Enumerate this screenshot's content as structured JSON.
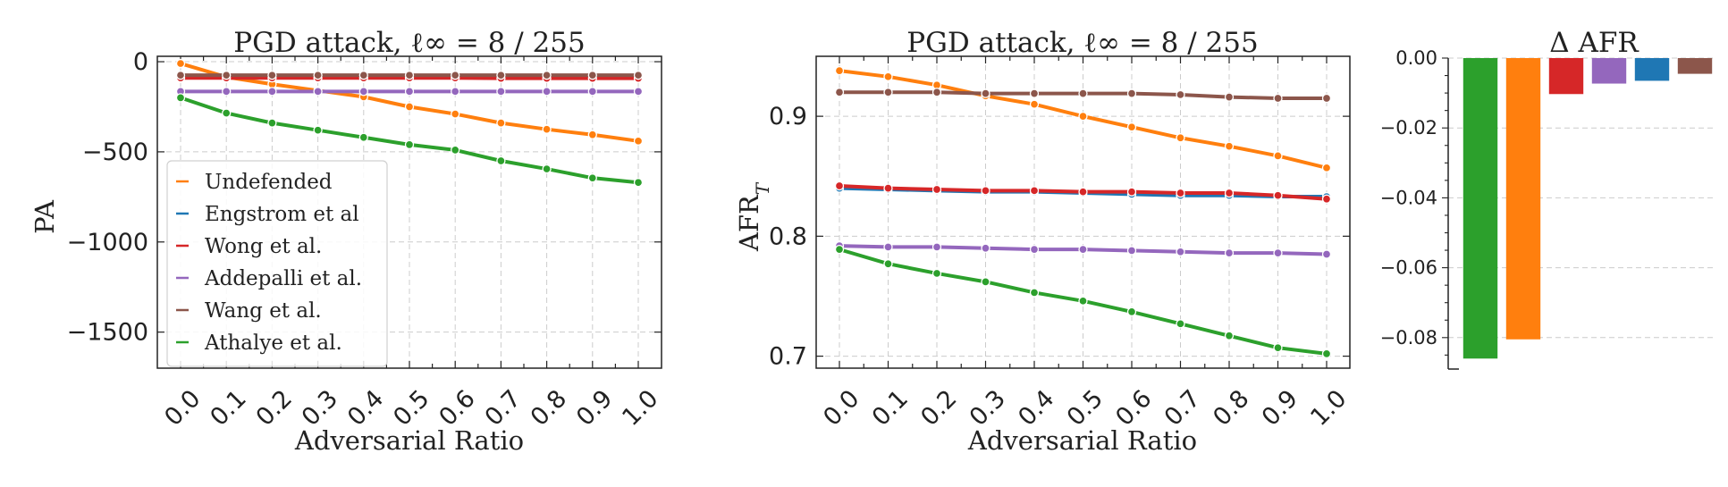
{
  "chart_data": [
    {
      "type": "line",
      "title": "PGD attack, ℓ∞ = 8 / 255",
      "xlabel": "Adversarial Ratio",
      "ylabel": "PA",
      "x": [
        0.0,
        0.1,
        0.2,
        0.3,
        0.4,
        0.5,
        0.6,
        0.7,
        0.8,
        0.9,
        1.0
      ],
      "x_tick_labels": [
        "0.0",
        "0.1",
        "0.2",
        "0.3",
        "0.4",
        "0.5",
        "0.6",
        "0.7",
        "0.8",
        "0.9",
        "1.0"
      ],
      "ylim": [
        -1700,
        30
      ],
      "y_ticks": [
        0,
        -500,
        -1000,
        -1500
      ],
      "y_tick_labels": [
        "0",
        "−500",
        "−1000",
        "−1500"
      ],
      "grid": true,
      "legend_position": "bottom-left",
      "series": [
        {
          "name": "Undefended",
          "color": "#ff7f0e",
          "values": [
            -10,
            -85,
            -125,
            -160,
            -195,
            -250,
            -290,
            -340,
            -375,
            -405,
            -440
          ]
        },
        {
          "name": "Engstrom et al",
          "color": "#1f77b4",
          "values": [
            -80,
            -80,
            -80,
            -80,
            -80,
            -80,
            -80,
            -80,
            -80,
            -80,
            -80
          ]
        },
        {
          "name": "Wong et al.",
          "color": "#d62728",
          "values": [
            -90,
            -90,
            -90,
            -90,
            -90,
            -90,
            -90,
            -92,
            -92,
            -92,
            -92
          ]
        },
        {
          "name": "Addepalli et al.",
          "color": "#9467bd",
          "values": [
            -165,
            -165,
            -165,
            -165,
            -165,
            -165,
            -165,
            -165,
            -165,
            -165,
            -165
          ]
        },
        {
          "name": "Wang et al.",
          "color": "#8c564b",
          "values": [
            -75,
            -75,
            -75,
            -75,
            -75,
            -75,
            -75,
            -75,
            -75,
            -75,
            -75
          ]
        },
        {
          "name": "Athalye et al.",
          "color": "#2ca02c",
          "values": [
            -200,
            -285,
            -340,
            -380,
            -420,
            -460,
            -490,
            -550,
            -595,
            -645,
            -670
          ]
        }
      ]
    },
    {
      "type": "line",
      "title": "PGD attack, ℓ∞ = 8 / 255",
      "xlabel": "Adversarial Ratio",
      "ylabel": "AFR",
      "ylabel_sub": "T",
      "x": [
        0.0,
        0.1,
        0.2,
        0.3,
        0.4,
        0.5,
        0.6,
        0.7,
        0.8,
        0.9,
        1.0
      ],
      "x_tick_labels": [
        "0.0",
        "0.1",
        "0.2",
        "0.3",
        "0.4",
        "0.5",
        "0.6",
        "0.7",
        "0.8",
        "0.9",
        "1.0"
      ],
      "ylim": [
        0.69,
        0.95
      ],
      "y_ticks": [
        0.7,
        0.8,
        0.9
      ],
      "y_tick_labels": [
        "0.7",
        "0.8",
        "0.9"
      ],
      "grid": true,
      "series": [
        {
          "name": "Undefended",
          "color": "#ff7f0e",
          "values": [
            0.938,
            0.933,
            0.926,
            0.917,
            0.91,
            0.9,
            0.891,
            0.882,
            0.875,
            0.867,
            0.857
          ]
        },
        {
          "name": "Engstrom et al",
          "color": "#1f77b4",
          "values": [
            0.84,
            0.839,
            0.838,
            0.837,
            0.837,
            0.836,
            0.835,
            0.834,
            0.834,
            0.833,
            0.833
          ]
        },
        {
          "name": "Wong et al.",
          "color": "#d62728",
          "values": [
            0.842,
            0.84,
            0.839,
            0.838,
            0.838,
            0.837,
            0.837,
            0.836,
            0.836,
            0.834,
            0.831
          ]
        },
        {
          "name": "Addepalli et al.",
          "color": "#9467bd",
          "values": [
            0.792,
            0.791,
            0.791,
            0.79,
            0.789,
            0.789,
            0.788,
            0.787,
            0.786,
            0.786,
            0.785
          ]
        },
        {
          "name": "Wang et al.",
          "color": "#8c564b",
          "values": [
            0.92,
            0.92,
            0.92,
            0.919,
            0.919,
            0.919,
            0.919,
            0.918,
            0.916,
            0.915,
            0.915
          ]
        },
        {
          "name": "Athalye et al.",
          "color": "#2ca02c",
          "values": [
            0.789,
            0.777,
            0.769,
            0.762,
            0.753,
            0.746,
            0.737,
            0.727,
            0.717,
            0.707,
            0.702
          ]
        }
      ]
    },
    {
      "type": "bar",
      "title": "Δ AFR",
      "ylim": [
        -0.089,
        0.0
      ],
      "y_ticks": [
        0.0,
        -0.02,
        -0.04,
        -0.06,
        -0.08
      ],
      "y_tick_labels": [
        "0.00",
        "−0.02",
        "−0.04",
        "−0.06",
        "−0.08"
      ],
      "grid": true,
      "bars": [
        {
          "color": "#2ca02c",
          "value": -0.086
        },
        {
          "color": "#ff7f0e",
          "value": -0.0805
        },
        {
          "color": "#d62728",
          "value": -0.0103
        },
        {
          "color": "#9467bd",
          "value": -0.0073
        },
        {
          "color": "#1f77b4",
          "value": -0.0065
        },
        {
          "color": "#8c564b",
          "value": -0.0045
        }
      ]
    }
  ]
}
